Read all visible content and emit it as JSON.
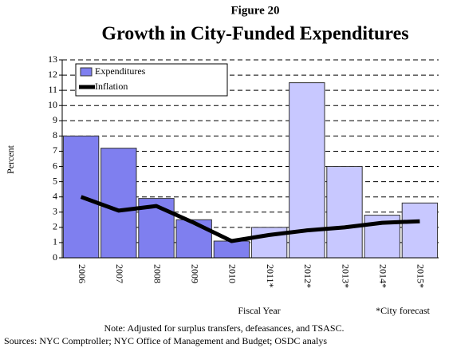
{
  "chart_data": {
    "type": "bar",
    "figure": "Figure 20",
    "title": "Growth in City-Funded Expenditures",
    "y_label": "Percent",
    "x_label": "Fiscal Year",
    "annotation": "*City forecast",
    "note": "Note: Adjusted for surplus transfers, defeasances, and TSASC.",
    "sources": "Sources: NYC Comptroller; NYC Office of Management and Budget; OSDC analys",
    "categories": [
      "2006",
      "2007",
      "2008",
      "2009",
      "2010",
      "2011*",
      "2012*",
      "2013*",
      "2014*",
      "2015*"
    ],
    "series": [
      {
        "name": "Expenditures",
        "type": "bar",
        "color": "#7f7fef",
        "colors": [
          "#7f7fef",
          "#7f7fef",
          "#7f7fef",
          "#7f7fef",
          "#7f7fef",
          "#c8c8ff",
          "#c8c8ff",
          "#c8c8ff",
          "#c8c8ff",
          "#c8c8ff"
        ],
        "values": [
          8.0,
          7.2,
          3.9,
          2.5,
          1.1,
          2.0,
          11.5,
          6.0,
          2.8,
          3.6
        ]
      },
      {
        "name": "Inflation",
        "type": "line",
        "color": "#000000",
        "values": [
          4.0,
          3.1,
          3.4,
          2.3,
          1.1,
          1.5,
          1.8,
          2.0,
          2.3,
          2.4
        ]
      }
    ],
    "ylim": [
      0,
      13
    ],
    "yticks": [
      0,
      1,
      2,
      3,
      4,
      5,
      6,
      7,
      8,
      9,
      10,
      11,
      12,
      13
    ],
    "grid": true
  }
}
